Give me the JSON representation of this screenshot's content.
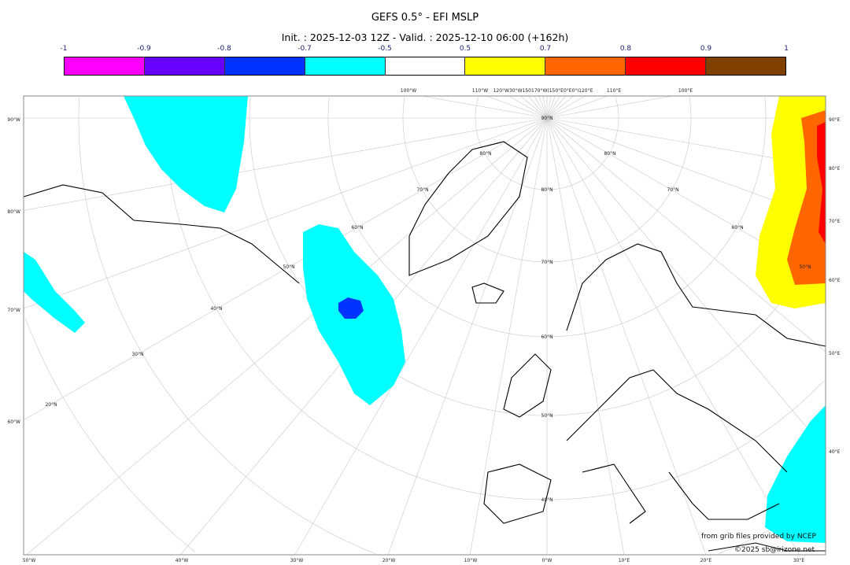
{
  "header": {
    "title": "GEFS 0.5° - EFI MSLP",
    "subtitle": "Init. : 2025-12-03 12Z - Valid. : 2025-12-10 06:00 (+162h)"
  },
  "colorbar": {
    "ticks": [
      "-1",
      "-0.9",
      "-0.8",
      "-0.7",
      "-0.5",
      "0.5",
      "0.7",
      "0.8",
      "0.9",
      "1"
    ],
    "colors": [
      "#ff00ff",
      "#6600ff",
      "#0033ff",
      "#00ffff",
      "#ffffff",
      "#ffff00",
      "#ff6600",
      "#ff0000",
      "#804000"
    ]
  },
  "map": {
    "left_labels": [
      "90°W",
      "80°W",
      "70°W",
      "60°W"
    ],
    "right_labels": [
      "90°E",
      "80°E",
      "70°E",
      "60°E",
      "50°E",
      "40°E"
    ],
    "bottom_labels": [
      "50°W",
      "40°W",
      "30°W",
      "20°W",
      "10°W",
      "0°W",
      "10°E",
      "20°E",
      "30°E"
    ],
    "top_labels": [
      "100°W",
      "110°W",
      "120°W30°W150170°W(150°E0°E0°I120°E",
      "110°E",
      "100°E"
    ],
    "lat_labels": [
      "90°N",
      "80°N",
      "80°N",
      "80°N",
      "70°N",
      "70°N",
      "70°N",
      "60°N",
      "60°N",
      "60°N",
      "50°N",
      "50°N",
      "50°N",
      "40°N",
      "40°N",
      "30°N",
      "20°N"
    ]
  },
  "credits": {
    "source": "from grib files provided by NCEP",
    "copyright": "©2025 sb@irizone.net"
  }
}
